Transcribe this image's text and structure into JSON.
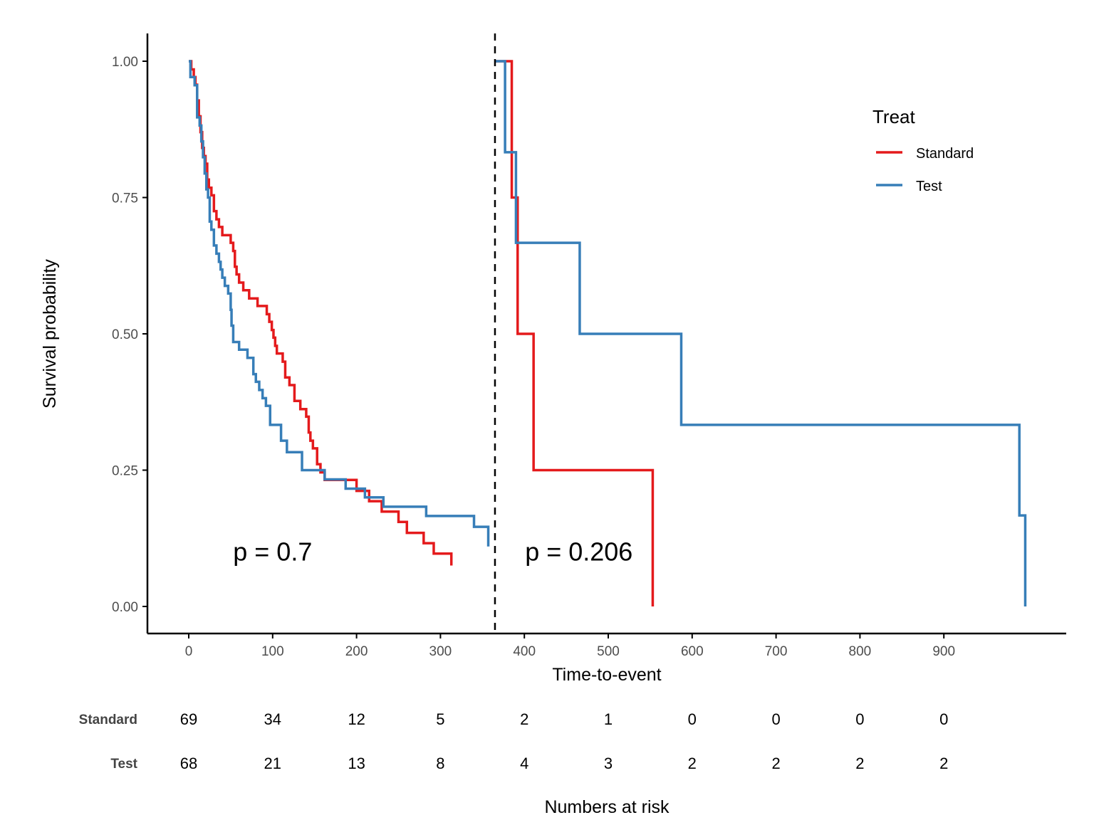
{
  "chart_data": {
    "type": "line",
    "subtype": "kaplan-meier-landmark",
    "title": "",
    "xlabel": "Time-to-event",
    "ylabel": "Survival probability",
    "xlim": [
      -50,
      1050
    ],
    "ylim": [
      -0.05,
      1.05
    ],
    "x_ticks": [
      0,
      100,
      200,
      300,
      400,
      500,
      600,
      700,
      800,
      900
    ],
    "x_tick_labels": [
      "0",
      "100",
      "200",
      "300",
      "400",
      "500",
      "600",
      "700",
      "800",
      "900"
    ],
    "y_ticks": [
      0,
      0.25,
      0.5,
      0.75,
      1.0
    ],
    "y_tick_labels": [
      "0.00",
      "0.25",
      "0.50",
      "0.75",
      "1.00"
    ],
    "grid": false,
    "landmark_time": 365,
    "legend": {
      "title": "Treat",
      "position": "top-right",
      "entries": [
        {
          "label": "Standard",
          "color": "#E41A1C"
        },
        {
          "label": "Test",
          "color": "#377EB8"
        }
      ]
    },
    "annotations": [
      {
        "text": "p = 0.7",
        "x": 100,
        "y": 0.1
      },
      {
        "text": "p = 0.206",
        "x": 465,
        "y": 0.1
      }
    ],
    "series": [
      {
        "name": "Standard",
        "color": "#E41A1C",
        "segments": [
          {
            "times": [
              0,
              3,
              6,
              8,
              10,
              12,
              14,
              16,
              18,
              20,
              22,
              24,
              27,
              30,
              33,
              36,
              40,
              45,
              50,
              53,
              55,
              57,
              60,
              65,
              72,
              82,
              93,
              96,
              99,
              101,
              103,
              105,
              108,
              112,
              115,
              120,
              126,
              133,
              140,
              143,
              145,
              148,
              153,
              157,
              162,
              175,
              200,
              215,
              230,
              250,
              260,
              280,
              292,
              313
            ],
            "surv": [
              1.0,
              0.985,
              0.971,
              0.957,
              0.928,
              0.899,
              0.87,
              0.841,
              0.826,
              0.812,
              0.783,
              0.768,
              0.754,
              0.725,
              0.71,
              0.696,
              0.681,
              0.681,
              0.667,
              0.652,
              0.623,
              0.609,
              0.594,
              0.58,
              0.565,
              0.551,
              0.536,
              0.522,
              0.507,
              0.493,
              0.478,
              0.464,
              0.464,
              0.449,
              0.42,
              0.406,
              0.377,
              0.362,
              0.348,
              0.319,
              0.304,
              0.29,
              0.261,
              0.246,
              0.232,
              0.232,
              0.212,
              0.193,
              0.174,
              0.155,
              0.135,
              0.116,
              0.097,
              0.087
            ],
            "end_time": 313,
            "end_surv": 0.075
          },
          {
            "times": [
              365,
              385,
              392,
              411,
              553
            ],
            "surv": [
              1.0,
              0.75,
              0.5,
              0.25,
              0.0
            ],
            "end_time": 553,
            "end_surv": 0.0
          }
        ]
      },
      {
        "name": "Test",
        "color": "#377EB8",
        "segments": [
          {
            "times": [
              0,
              2,
              7,
              10,
              13,
              15,
              17,
              19,
              21,
              23,
              25,
              27,
              30,
              33,
              36,
              38,
              40,
              43,
              47,
              50,
              51,
              53,
              60,
              70,
              77,
              80,
              84,
              88,
              92,
              97,
              110,
              117,
              135,
              162,
              187,
              210,
              232,
              283,
              340,
              357
            ],
            "surv": [
              1.0,
              0.971,
              0.956,
              0.897,
              0.882,
              0.853,
              0.824,
              0.794,
              0.765,
              0.75,
              0.706,
              0.691,
              0.662,
              0.647,
              0.632,
              0.618,
              0.603,
              0.588,
              0.574,
              0.544,
              0.515,
              0.485,
              0.471,
              0.456,
              0.426,
              0.412,
              0.397,
              0.382,
              0.368,
              0.333,
              0.304,
              0.283,
              0.25,
              0.233,
              0.216,
              0.2,
              0.183,
              0.166,
              0.146,
              0.128
            ],
            "end_time": 357,
            "end_surv": 0.11
          },
          {
            "times": [
              365,
              377,
              390,
              466,
              587,
              990,
              997
            ],
            "surv": [
              1.0,
              0.833,
              0.667,
              0.5,
              0.333,
              0.167,
              0.0
            ],
            "end_time": 997,
            "end_surv": 0.0
          }
        ]
      }
    ],
    "risk_table": {
      "title": "Numbers at risk",
      "times": [
        0,
        100,
        200,
        300,
        400,
        500,
        600,
        700,
        800,
        900
      ],
      "rows": [
        {
          "strata": "Standard",
          "values": [
            "69",
            "34",
            "12",
            "5",
            "2",
            "1",
            "0",
            "0",
            "0",
            "0"
          ]
        },
        {
          "strata": "Test",
          "values": [
            "68",
            "21",
            "13",
            "8",
            "4",
            "3",
            "2",
            "2",
            "2",
            "2"
          ]
        }
      ]
    }
  }
}
